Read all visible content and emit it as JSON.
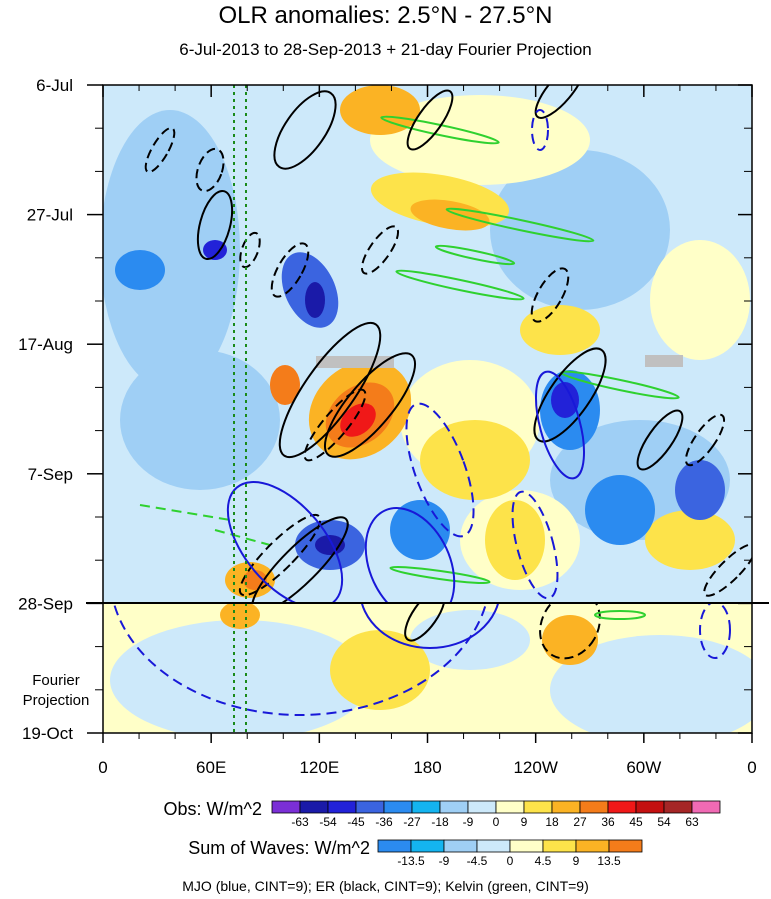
{
  "chart_data": {
    "type": "heatmap",
    "title": "OLR anomalies: 2.5°N - 27.5°N",
    "subtitle": "6-Jul-2013 to 28-Sep-2013 + 21-day Fourier Projection",
    "y_ticks": [
      "6-Jul",
      "27-Jul",
      "17-Aug",
      "7-Sep",
      "28-Sep",
      "19-Oct"
    ],
    "x_ticks": [
      "0",
      "60E",
      "120E",
      "180",
      "120W",
      "60W",
      "0"
    ],
    "fourier_label": [
      "Fourier",
      "Projection"
    ],
    "obs_colorbar": {
      "label": "Obs: W/m^2",
      "levels": [
        "-63",
        "-54",
        "-45",
        "-36",
        "-27",
        "-18",
        "-9",
        "0",
        "9",
        "18",
        "27",
        "36",
        "45",
        "54",
        "63"
      ],
      "colors": [
        "#7b2fd6",
        "#1a1aa8",
        "#2222d8",
        "#3b64e0",
        "#2b8bf0",
        "#14b4f0",
        "#9fcff5",
        "#cde9fa",
        "#ffffc8",
        "#fde34a",
        "#fbb324",
        "#f47c1a",
        "#f01818",
        "#c41010",
        "#a52626",
        "#f06ab4"
      ]
    },
    "waves_colorbar": {
      "label": "Sum of Waves: W/m^2",
      "levels": [
        "-13.5",
        "-9",
        "-4.5",
        "0",
        "4.5",
        "9",
        "13.5"
      ],
      "colors": [
        "#2b8bf0",
        "#14b4f0",
        "#9fcff5",
        "#cde9fa",
        "#ffffc8",
        "#fde34a",
        "#fbb324",
        "#f47c1a"
      ]
    },
    "footer": "MJO (blue, CINT=9); ER (black, CINT=9); Kelvin (green, CINT=9)"
  }
}
